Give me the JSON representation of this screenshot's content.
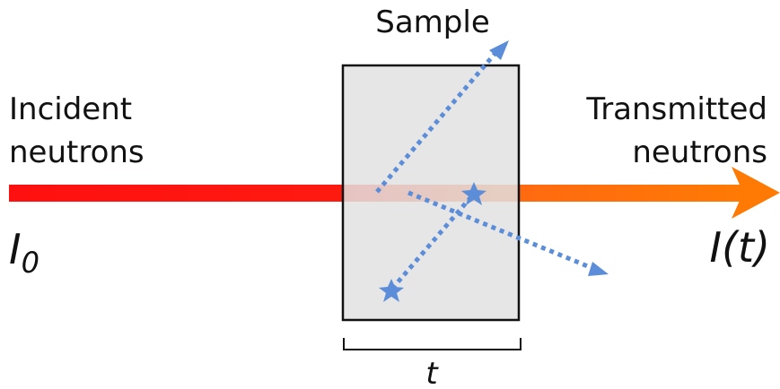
{
  "labels": {
    "sample": "Sample",
    "incident": [
      "Incident",
      "neutrons"
    ],
    "transmitted": [
      "Transmitted",
      "neutrons"
    ],
    "intensity_in": {
      "symbol": "I",
      "subscript": "0"
    },
    "intensity_out": "I(t)",
    "thickness": "t"
  }
}
